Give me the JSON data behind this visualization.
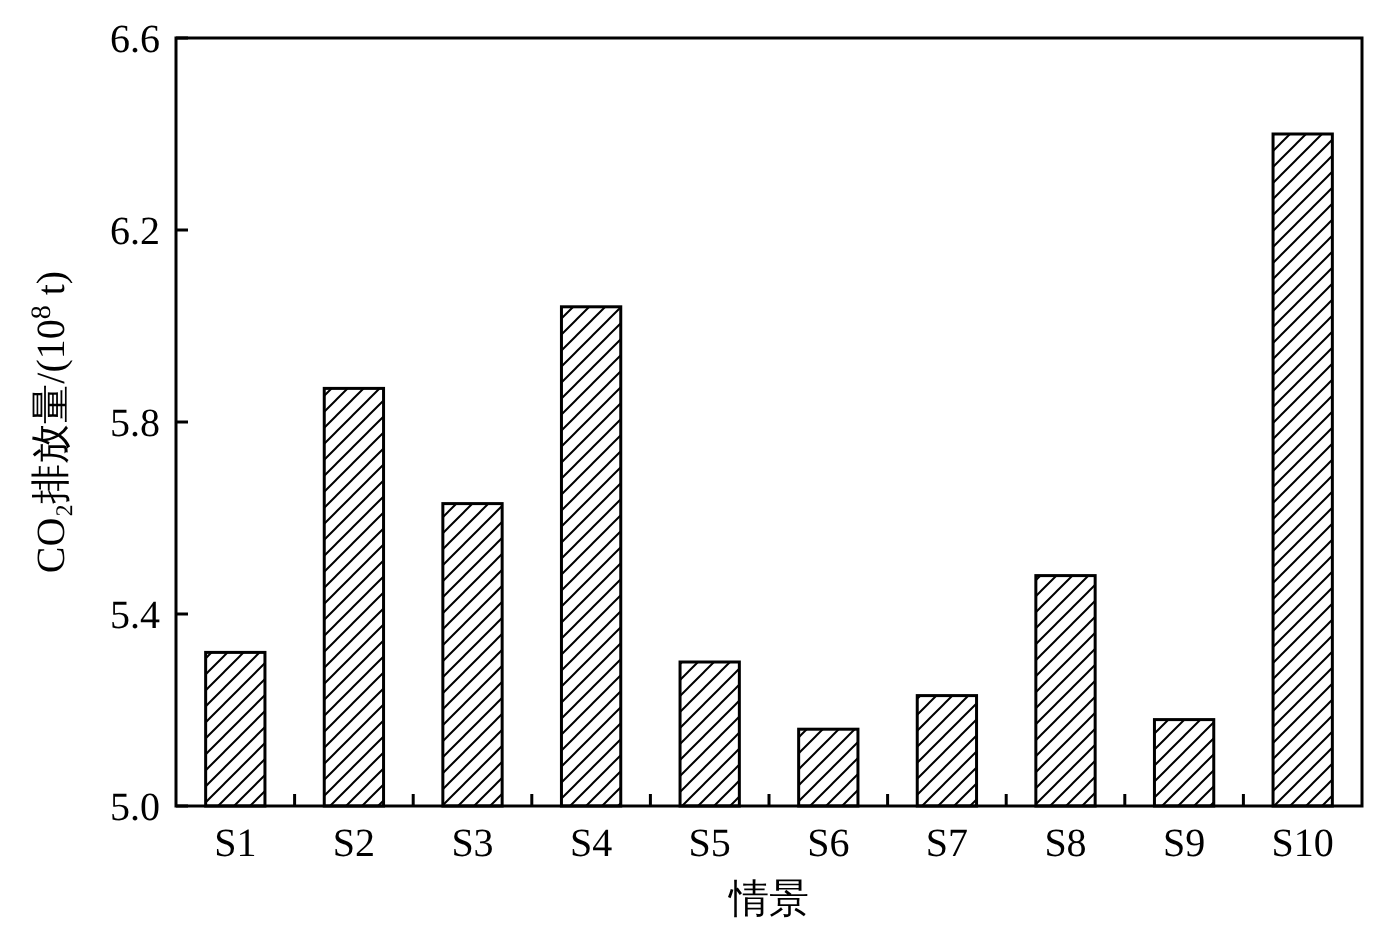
{
  "chart_data": {
    "type": "bar",
    "xlabel": "情景",
    "ylabel": "CO₂排放量/(10$^{8}$ t)",
    "categories": [
      "S1",
      "S2",
      "S3",
      "S4",
      "S5",
      "S6",
      "S7",
      "S8",
      "S9",
      "S10"
    ],
    "values": [
      5.32,
      5.87,
      5.63,
      6.04,
      5.3,
      5.16,
      5.23,
      5.48,
      5.18,
      6.4
    ],
    "color": "#000000",
    "ylim": [
      5.0,
      6.6
    ],
    "yticks": [
      {
        "value": 5.0,
        "label": "5.0"
      },
      5.4,
      5.8,
      6.2,
      6.6
    ]
  }
}
